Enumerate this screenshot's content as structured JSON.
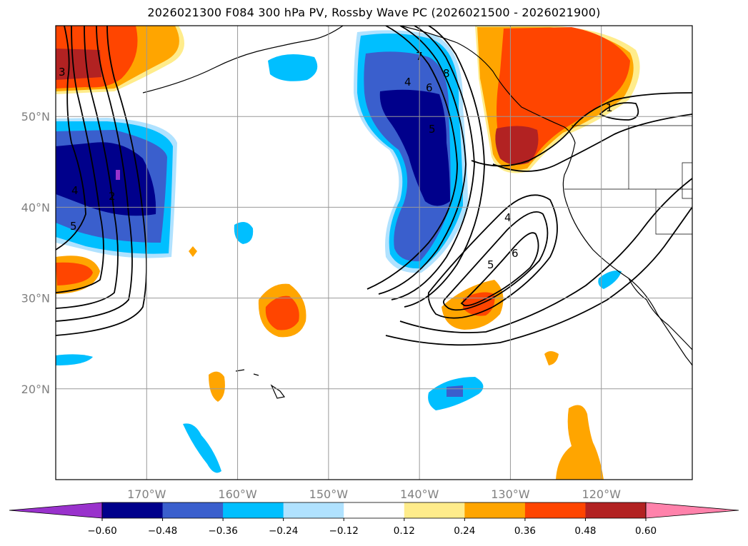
{
  "title": "2026021300 F084 300 hPa PV, Rossby Wave PC (2026021500 - 2026021900)",
  "map": {
    "projection": "equirectangular",
    "lon_range": [
      -180,
      -110
    ],
    "lat_range": [
      10,
      60
    ],
    "lat_ticks": [
      {
        "value": 20,
        "label": "20°N"
      },
      {
        "value": 30,
        "label": "30°N"
      },
      {
        "value": 40,
        "label": "40°N"
      },
      {
        "value": 50,
        "label": "50°N"
      }
    ],
    "lon_ticks": [
      {
        "value": -170,
        "label": "170°W"
      },
      {
        "value": -160,
        "label": "160°W"
      },
      {
        "value": -150,
        "label": "150°W"
      },
      {
        "value": -140,
        "label": "140°W"
      },
      {
        "value": -130,
        "label": "130°W"
      },
      {
        "value": -120,
        "label": "120°W"
      }
    ],
    "grid": true,
    "contour_labels": [
      "3",
      "4",
      "5",
      "2",
      "7",
      "8",
      "4",
      "6",
      "5",
      "1",
      "4",
      "5",
      "6"
    ]
  },
  "colorbar": {
    "ticks": [
      "−0.60",
      "−0.48",
      "−0.36",
      "−0.24",
      "−0.12",
      "0.12",
      "0.24",
      "0.36",
      "0.48",
      "0.60"
    ],
    "colors": [
      "#9932cc",
      "#00008b",
      "#3a5fcd",
      "#00bfff",
      "#b0e2ff",
      "#ffffff",
      "#ffec8b",
      "#ffa500",
      "#ff4500",
      "#b22222",
      "#ff82ab"
    ],
    "extend": "both"
  }
}
